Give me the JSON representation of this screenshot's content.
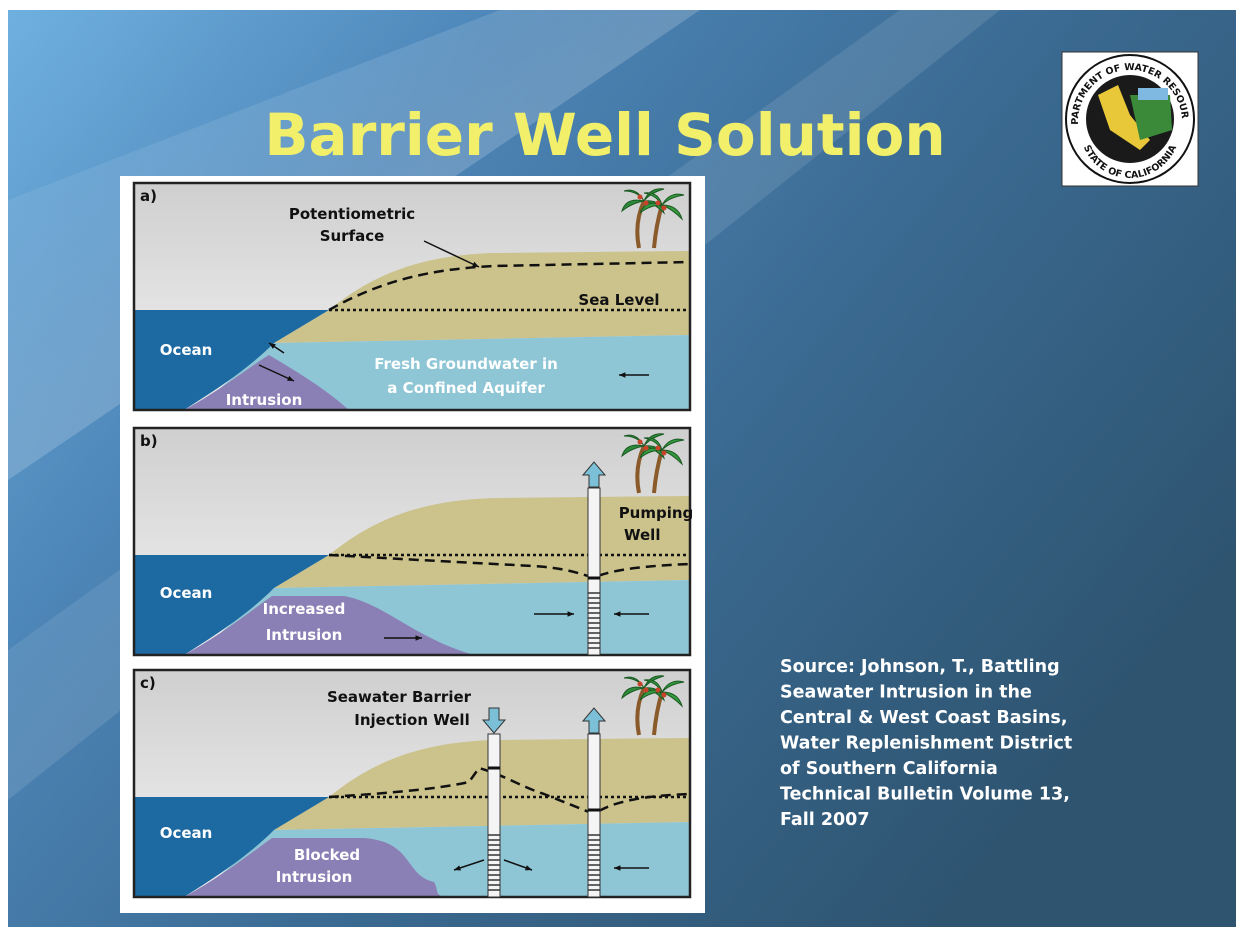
{
  "title": "Barrier Well Solution",
  "logo": {
    "top": "DEPARTMENT OF WATER RESOURCES",
    "bottom": "STATE OF CALIFORNIA"
  },
  "panels": [
    {
      "label": "a)",
      "texts": [
        "Potentiometric",
        "Surface",
        "Sea Level",
        "Ocean",
        "Fresh Groundwater in",
        "a Confined Aquifer",
        "Intrusion"
      ]
    },
    {
      "label": "b)",
      "texts": [
        "Pumping",
        "Well",
        "Ocean",
        "Increased",
        "Intrusion"
      ]
    },
    {
      "label": "c)",
      "texts": [
        "Seawater Barrier",
        "Injection Well",
        "Ocean",
        "Blocked",
        "Intrusion"
      ]
    }
  ],
  "source": [
    "Source: Johnson, T., Battling",
    "Seawater Intrusion in the",
    "Central & West Coast Basins,",
    "Water Replenishment District",
    "of Southern California",
    "Technical Bulletin Volume 13,",
    "Fall 2007"
  ]
}
